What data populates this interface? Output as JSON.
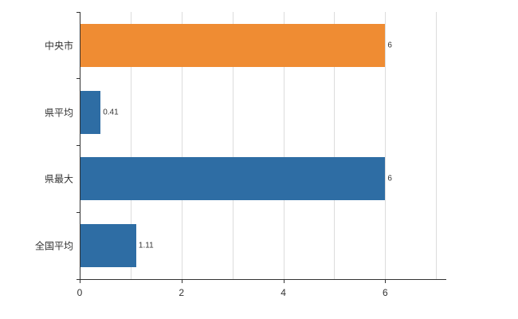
{
  "chart_data": {
    "type": "bar",
    "orientation": "horizontal",
    "title": "",
    "xlabel": "",
    "ylabel": "",
    "categories": [
      "中央市",
      "県平均",
      "県最大",
      "全国平均"
    ],
    "values": [
      6,
      0.41,
      6,
      1.11
    ],
    "value_labels": [
      "6",
      "0.41",
      "6",
      "1.11"
    ],
    "bar_colors": [
      "#ef8c33",
      "#2e6da4",
      "#2e6da4",
      "#2e6da4"
    ],
    "xlim": [
      0,
      7.2
    ],
    "x_ticks": [
      0,
      2,
      4,
      6
    ],
    "gridlines": [
      1,
      2,
      3,
      4,
      5,
      6,
      7
    ],
    "grid": true,
    "legend": false
  },
  "colors": {
    "grid": "#dcdcdc",
    "axis": "#333333",
    "text": "#333333",
    "background": "#ffffff"
  }
}
